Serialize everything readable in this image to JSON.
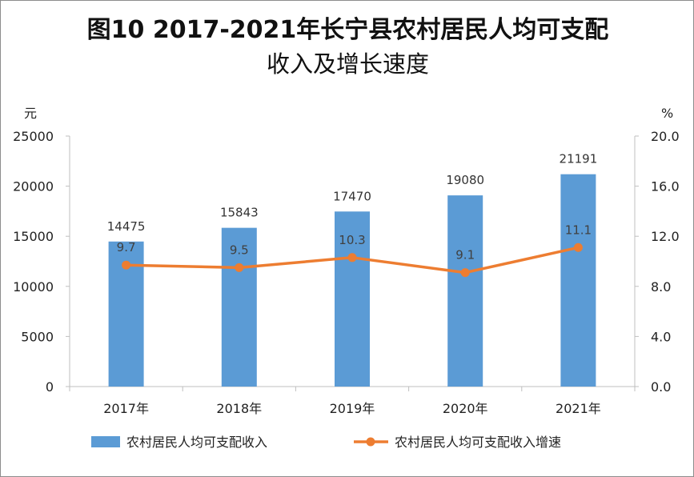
{
  "title_line1": "图10  2017-2021年长宁县农村居民人均可支配",
  "title_line2": "收入及增长速度",
  "chart_data": {
    "type": "bar",
    "categories": [
      "2017年",
      "2018年",
      "2019年",
      "2020年",
      "2021年"
    ],
    "series": [
      {
        "name": "农村居民人均可支配收入",
        "type": "bar",
        "axis": "left",
        "color": "#5b9bd5",
        "values": [
          14475,
          15843,
          17470,
          19080,
          21191
        ],
        "labels": [
          "14475",
          "15843",
          "17470",
          "19080",
          "21191"
        ]
      },
      {
        "name": "农村居民人均可支配收入增速",
        "type": "line",
        "axis": "right",
        "color": "#ed7d31",
        "values": [
          9.7,
          9.5,
          10.3,
          9.1,
          11.1
        ],
        "labels": [
          "9.7",
          "9.5",
          "10.3",
          "9.1",
          "11.1"
        ]
      }
    ],
    "y_left": {
      "unit": "元",
      "range": [
        0,
        25000
      ],
      "ticks": [
        "25000",
        "20000",
        "15000",
        "10000",
        "5000",
        "0"
      ]
    },
    "y_right": {
      "unit": "%",
      "range": [
        0,
        20
      ],
      "ticks": [
        "20.0",
        "16.0",
        "12.0",
        "8.0",
        "4.0",
        "0.0"
      ]
    },
    "grid": false,
    "legend_position": "bottom"
  }
}
